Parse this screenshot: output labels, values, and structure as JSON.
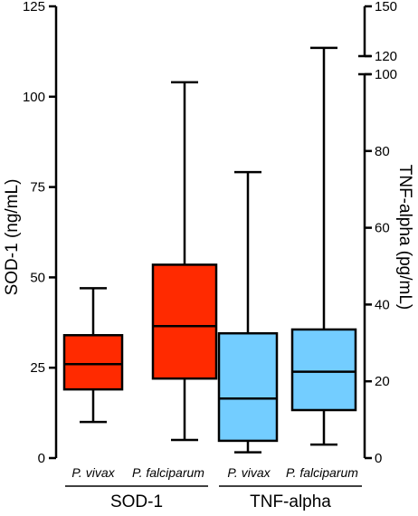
{
  "chart_data": {
    "type": "boxplot",
    "title": "",
    "left_axis": {
      "label": "SOD-1 (ng/mL)",
      "range": [
        0,
        125
      ],
      "ticks": [
        "0",
        "25",
        "50",
        "75",
        "100",
        "125"
      ]
    },
    "right_axis": {
      "label": "TNF-alpha (pg/mL)",
      "range_lower": [
        0,
        100
      ],
      "range_upper": [
        120,
        150
      ],
      "ticks_lower": [
        "0",
        "20",
        "40",
        "60",
        "80",
        "100"
      ],
      "ticks_upper": [
        "120",
        "150"
      ],
      "broken": true
    },
    "groups": [
      {
        "label": "SOD-1",
        "axis": "left",
        "color": "#ff2a00"
      },
      {
        "label": "TNF-alpha",
        "axis": "right",
        "color": "#73cdff"
      }
    ],
    "series": [
      {
        "category": "P. vivax",
        "group": "SOD-1",
        "min": 10,
        "q1": 19,
        "median": 26,
        "q3": 34,
        "max": 47
      },
      {
        "category": "P. falciparum",
        "group": "SOD-1",
        "min": 5,
        "q1": 22,
        "median": 36.5,
        "q3": 53.5,
        "max": 104
      },
      {
        "category": "P. vivax",
        "group": "TNF-alpha",
        "min": 1.5,
        "q1": 4.5,
        "median": 15.5,
        "q3": 32.5,
        "max": 74.5
      },
      {
        "category": "P. falciparum",
        "group": "TNF-alpha",
        "min": 3.5,
        "q1": 12.5,
        "median": 22.5,
        "q3": 33.5,
        "max": 125
      }
    ]
  }
}
